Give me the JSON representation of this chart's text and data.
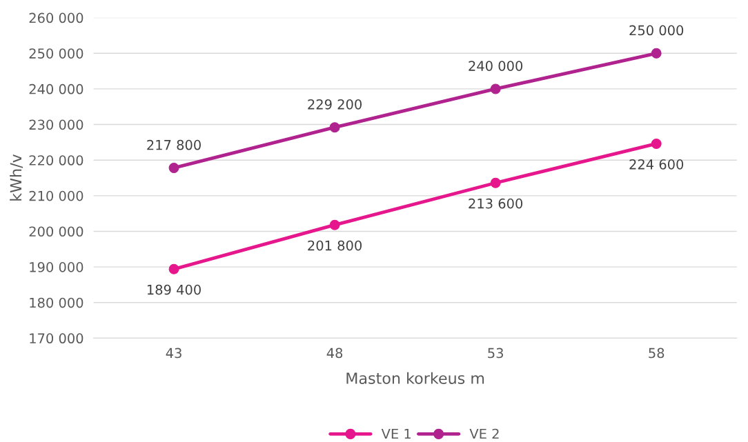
{
  "chart_data": {
    "type": "line",
    "xlabel": "Maston korkeus m",
    "ylabel": "kWh/v",
    "categories": [
      "43",
      "48",
      "53",
      "58"
    ],
    "series": [
      {
        "name": "VE 1",
        "color": "#e6168c",
        "values": [
          189400,
          201800,
          213600,
          224600
        ],
        "value_labels": [
          "189 400",
          "201 800",
          "213 600",
          "224 600"
        ]
      },
      {
        "name": "VE 2",
        "color": "#b0238f",
        "values": [
          217800,
          229200,
          240000,
          250000
        ],
        "value_labels": [
          "217 800",
          "229 200",
          "240 000",
          "250 000"
        ]
      }
    ],
    "ylim": [
      170000,
      260000
    ],
    "yticks": [
      {
        "value": 170000,
        "label": "170 000"
      },
      {
        "value": 180000,
        "label": "180 000"
      },
      {
        "value": 190000,
        "label": "190 000"
      },
      {
        "value": 200000,
        "label": "200 000"
      },
      {
        "value": 210000,
        "label": "210 000"
      },
      {
        "value": 220000,
        "label": "220 000"
      },
      {
        "value": 230000,
        "label": "230 000"
      },
      {
        "value": 240000,
        "label": "240 000"
      },
      {
        "value": 250000,
        "label": "250 000"
      },
      {
        "value": 260000,
        "label": "260 000"
      }
    ],
    "grid": "y",
    "legend": "bottom",
    "marker": "circle",
    "line_style": "solid"
  }
}
